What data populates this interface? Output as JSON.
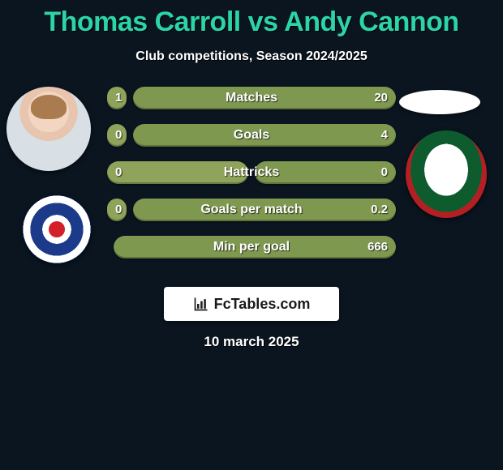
{
  "title": "Thomas Carroll vs Andy Cannon",
  "subtitle": "Club competitions, Season 2024/2025",
  "date": "10 march 2025",
  "brand": "FcTables.com",
  "colors": {
    "accent": "#2dd4a8",
    "bar_left": "#8fa35a",
    "bar_right": "#7f9850",
    "bg": "#0a1520"
  },
  "row_layout": {
    "total_width": 356,
    "gap": 8,
    "min_side": 24
  },
  "rows": [
    {
      "label": "Matches",
      "left": "1",
      "right": "20",
      "left_n": 1,
      "right_n": 20
    },
    {
      "label": "Goals",
      "left": "0",
      "right": "4",
      "left_n": 0,
      "right_n": 4
    },
    {
      "label": "Hattricks",
      "left": "0",
      "right": "0",
      "left_n": 0,
      "right_n": 0
    },
    {
      "label": "Goals per match",
      "left": "0",
      "right": "0.2",
      "left_n": 0,
      "right_n": 0.2
    },
    {
      "label": "Min per goal",
      "left": "",
      "right": "666",
      "left_n": null,
      "right_n": 666
    }
  ]
}
